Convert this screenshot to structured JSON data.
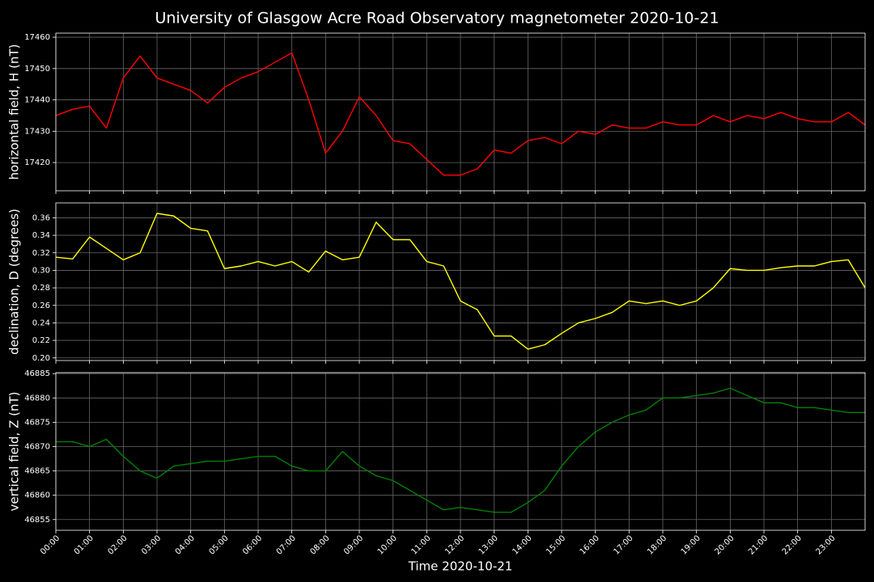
{
  "title": "University of Glasgow Acre Road Observatory magnetometer 2020-10-21",
  "chart_data": [
    {
      "type": "line",
      "ylabel": "horizontal field, H (nT)",
      "color": "#ff0000",
      "grid": true,
      "x": [
        0,
        0.5,
        1,
        1.5,
        2,
        2.5,
        3,
        3.5,
        4,
        4.5,
        5,
        5.5,
        6,
        6.5,
        7,
        7.5,
        8,
        8.5,
        9,
        9.5,
        10,
        10.5,
        11,
        11.5,
        12,
        12.5,
        13,
        13.5,
        14,
        14.5,
        15,
        15.5,
        16,
        16.5,
        17,
        17.5,
        18,
        18.5,
        19,
        19.5,
        20,
        20.5,
        21,
        21.5,
        22,
        22.5,
        23,
        23.5,
        24
      ],
      "values": [
        17435,
        17437,
        17438,
        17431,
        17447,
        17454,
        17447,
        17445,
        17443,
        17439,
        17444,
        17447,
        17449,
        17452,
        17455,
        17440,
        17423,
        17430,
        17441,
        17435,
        17427,
        17426,
        17421,
        17416,
        17416,
        17418,
        17424,
        17423,
        17427,
        17428,
        17426,
        17430,
        17429,
        17432,
        17431,
        17431,
        17433,
        17432,
        17432,
        17435,
        17433,
        17435,
        17434,
        17436,
        17434,
        17433,
        17433,
        17436,
        17432
      ],
      "xlim": [
        0,
        24
      ],
      "ylim": [
        17411,
        17461.3
      ],
      "yticks": [
        17420,
        17430,
        17440,
        17450,
        17460
      ]
    },
    {
      "type": "line",
      "ylabel": "declination, D (degrees)",
      "color": "#ffff00",
      "grid": true,
      "x": [
        0,
        0.5,
        1,
        1.5,
        2,
        2.5,
        3,
        3.5,
        4,
        4.5,
        5,
        5.5,
        6,
        6.5,
        7,
        7.5,
        8,
        8.5,
        9,
        9.5,
        10,
        10.5,
        11,
        11.5,
        12,
        12.5,
        13,
        13.5,
        14,
        14.5,
        15,
        15.5,
        16,
        16.5,
        17,
        17.5,
        18,
        18.5,
        19,
        19.5,
        20,
        20.5,
        21,
        21.5,
        22,
        22.5,
        23,
        23.5,
        24
      ],
      "values": [
        0.315,
        0.313,
        0.338,
        0.325,
        0.312,
        0.32,
        0.365,
        0.362,
        0.348,
        0.345,
        0.302,
        0.305,
        0.31,
        0.305,
        0.31,
        0.298,
        0.322,
        0.312,
        0.315,
        0.355,
        0.335,
        0.335,
        0.31,
        0.305,
        0.265,
        0.255,
        0.225,
        0.225,
        0.21,
        0.215,
        0.228,
        0.24,
        0.245,
        0.252,
        0.265,
        0.262,
        0.265,
        0.26,
        0.265,
        0.28,
        0.302,
        0.3,
        0.3,
        0.303,
        0.305,
        0.305,
        0.31,
        0.312,
        0.28
      ],
      "xlim": [
        0,
        24
      ],
      "ylim": [
        0.197,
        0.377
      ],
      "yticks": [
        {
          "value": 0.2,
          "label": "0.20"
        },
        0.22,
        0.24,
        0.26,
        0.28,
        {
          "value": 0.3,
          "label": "0.30"
        },
        0.32,
        0.34,
        0.36
      ]
    },
    {
      "type": "line",
      "ylabel": "vertical field, Z (nT)",
      "xlabel": "Time 2020-10-21",
      "color": "#008000",
      "grid": true,
      "x": [
        0,
        0.5,
        1,
        1.5,
        2,
        2.5,
        3,
        3.5,
        4,
        4.5,
        5,
        5.5,
        6,
        6.5,
        7,
        7.5,
        8,
        8.5,
        9,
        9.5,
        10,
        10.5,
        11,
        11.5,
        12,
        12.5,
        13,
        13.5,
        14,
        14.5,
        15,
        15.5,
        16,
        16.5,
        17,
        17.5,
        18,
        18.5,
        19,
        19.5,
        20,
        20.5,
        21,
        21.5,
        22,
        22.5,
        23,
        23.5,
        24
      ],
      "values": [
        46871,
        46871,
        46870,
        46871.5,
        46868,
        46865,
        46863.5,
        46866,
        46866.5,
        46867,
        46867,
        46867.5,
        46868,
        46868,
        46866,
        46865,
        46865,
        46869,
        46866,
        46864,
        46863,
        46861,
        46859,
        46857,
        46857.5,
        46857,
        46856.5,
        46856.5,
        46858.5,
        46861,
        46866,
        46870,
        46873,
        46875,
        46876.5,
        46877.5,
        46880,
        46880,
        46880.5,
        46881,
        46882,
        46880.5,
        46879,
        46879,
        46878,
        46878,
        46877.5,
        46877,
        46877
      ],
      "xlim": [
        0,
        24
      ],
      "ylim": [
        46852.8,
        46885.2
      ],
      "yticks": [
        46855,
        46860,
        46865,
        46870,
        46875,
        46880,
        46885
      ],
      "xticks": [
        {
          "value": 0,
          "label": "00:00"
        },
        {
          "value": 1,
          "label": "01:00"
        },
        {
          "value": 2,
          "label": "02:00"
        },
        {
          "value": 3,
          "label": "03:00"
        },
        {
          "value": 4,
          "label": "04:00"
        },
        {
          "value": 5,
          "label": "05:00"
        },
        {
          "value": 6,
          "label": "06:00"
        },
        {
          "value": 7,
          "label": "07:00"
        },
        {
          "value": 8,
          "label": "08:00"
        },
        {
          "value": 9,
          "label": "09:00"
        },
        {
          "value": 10,
          "label": "10:00"
        },
        {
          "value": 11,
          "label": "11:00"
        },
        {
          "value": 12,
          "label": "12:00"
        },
        {
          "value": 13,
          "label": "13:00"
        },
        {
          "value": 14,
          "label": "14:00"
        },
        {
          "value": 15,
          "label": "15:00"
        },
        {
          "value": 16,
          "label": "16:00"
        },
        {
          "value": 17,
          "label": "17:00"
        },
        {
          "value": 18,
          "label": "18:00"
        },
        {
          "value": 19,
          "label": "19:00"
        },
        {
          "value": 20,
          "label": "20:00"
        },
        {
          "value": 21,
          "label": "21:00"
        },
        {
          "value": 22,
          "label": "22:00"
        },
        {
          "value": 23,
          "label": "23:00"
        }
      ]
    }
  ]
}
